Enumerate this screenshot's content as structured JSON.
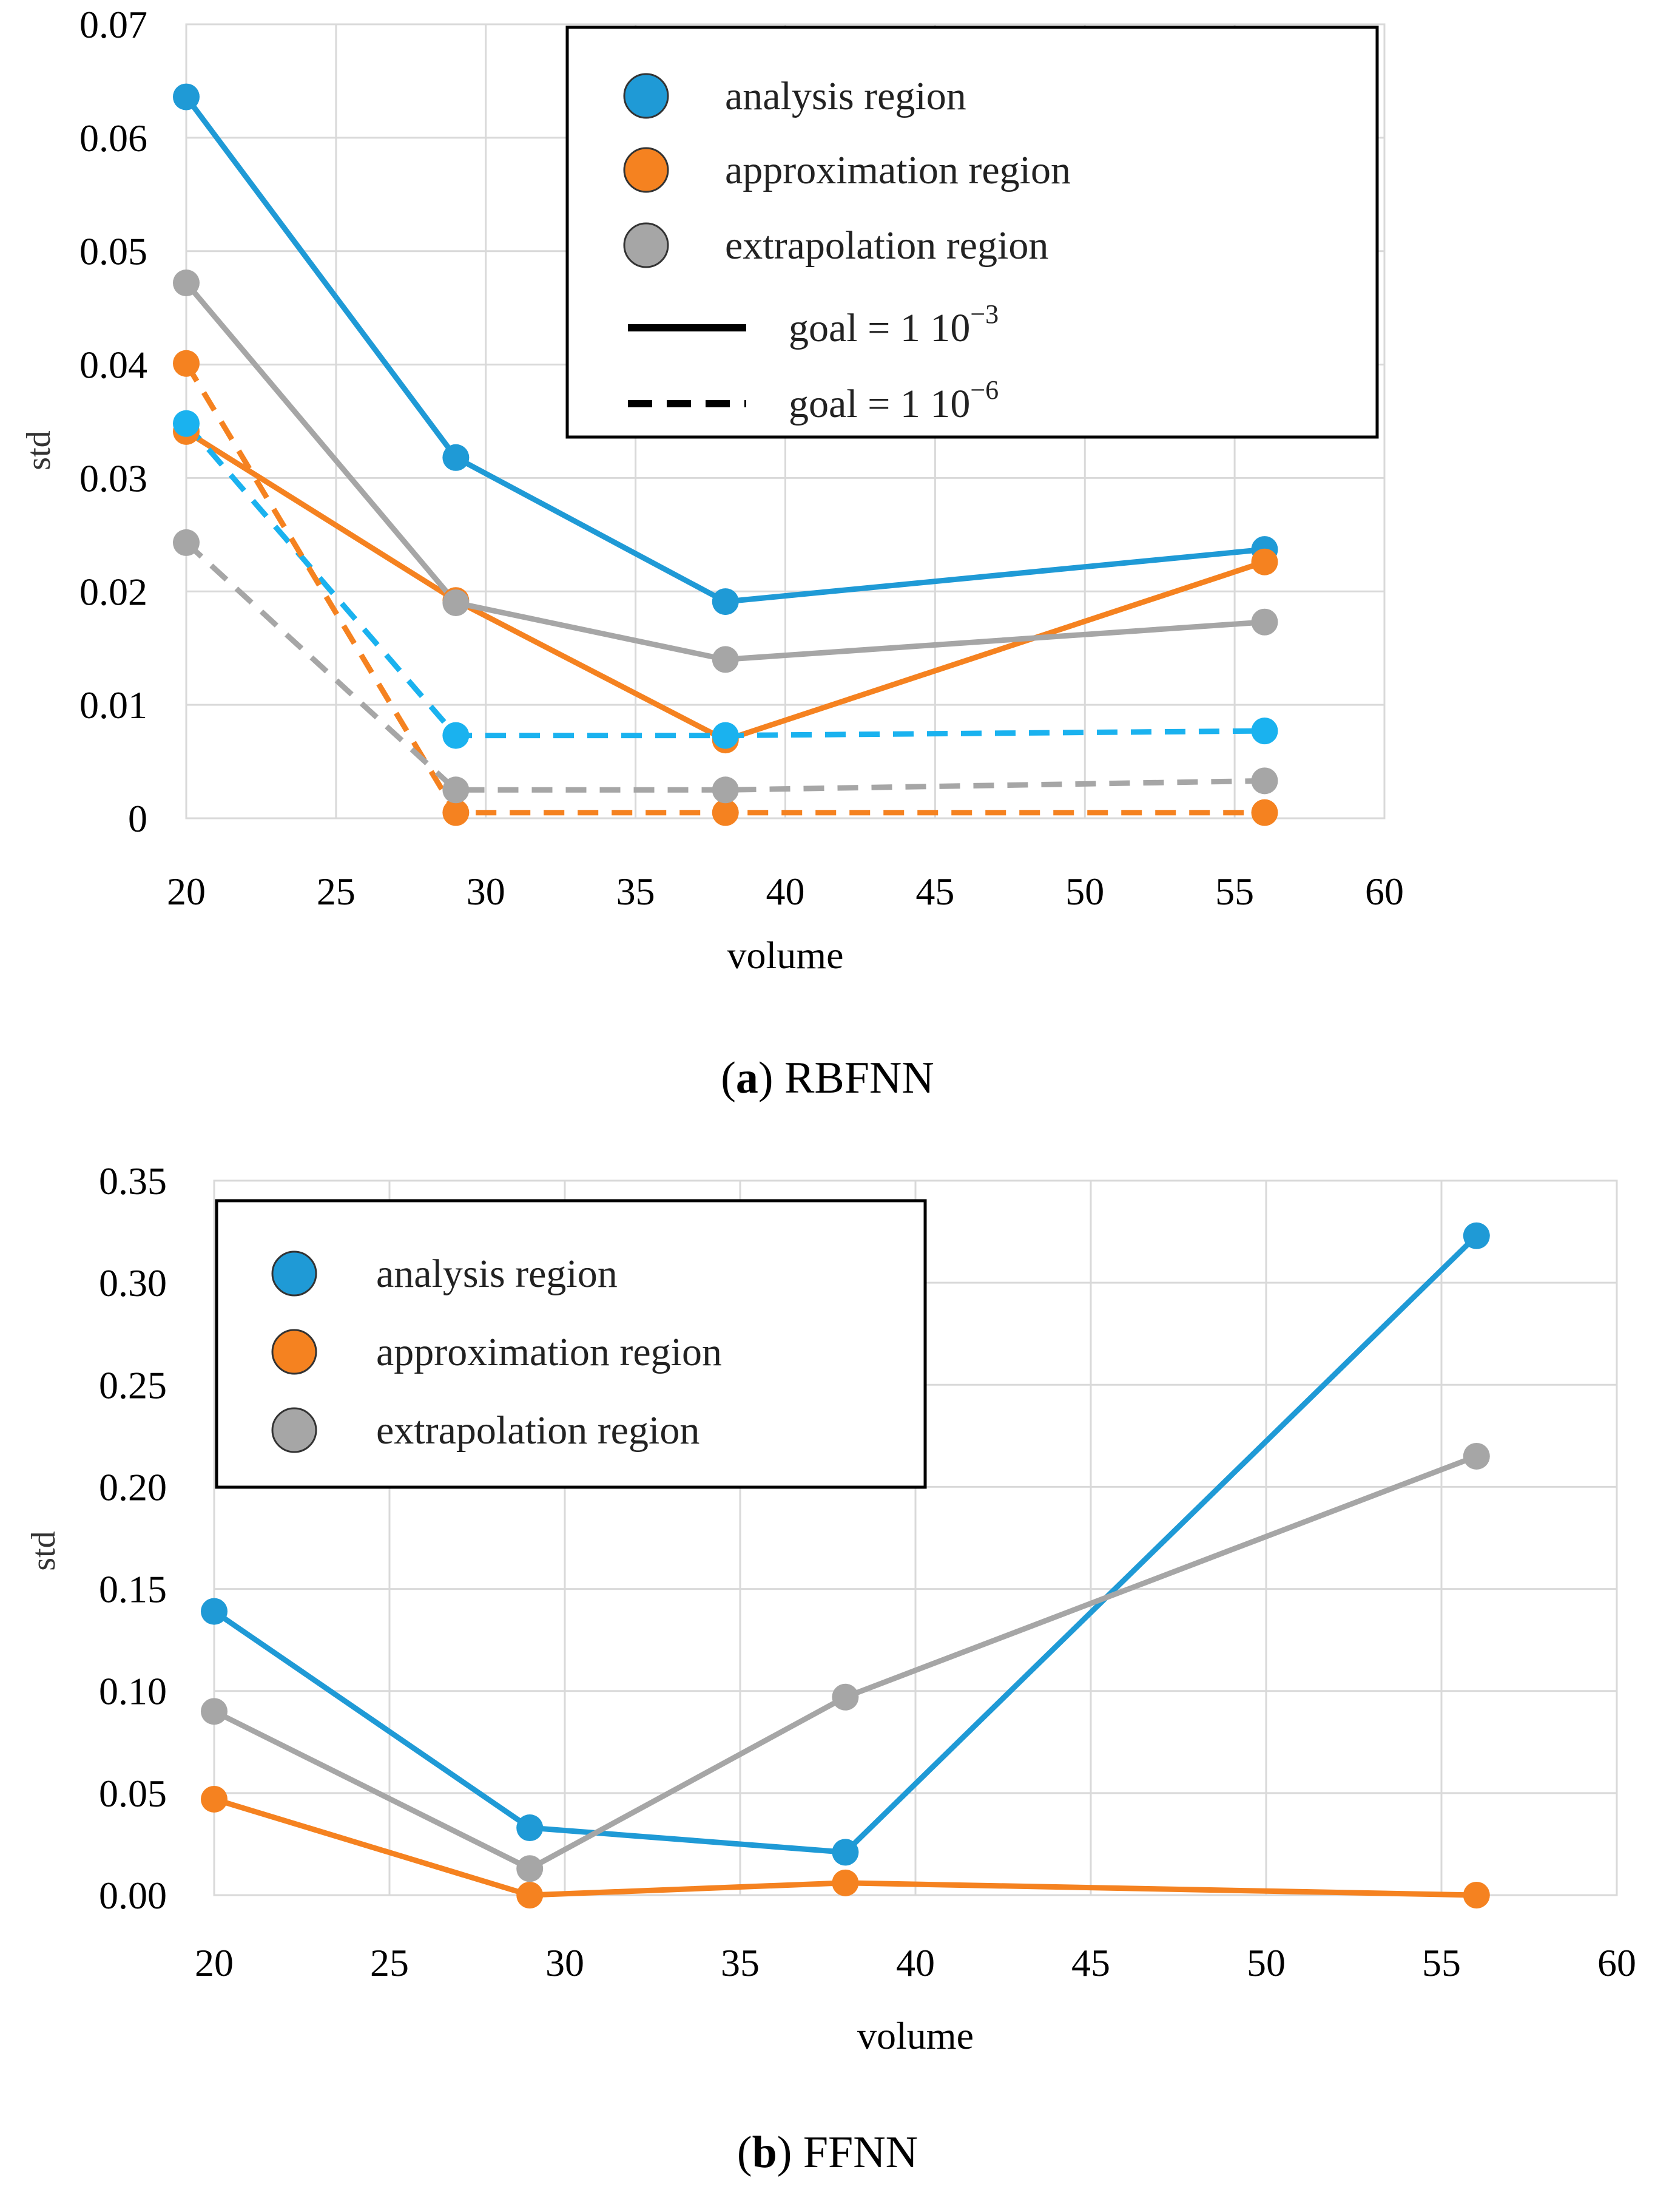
{
  "colors": {
    "analysis": "#1f9ad6",
    "analysis_dashed": "#1ab2ef",
    "approximation": "#f58220",
    "extrapolation": "#a6a6a6",
    "grid": "#d9d9d9",
    "frame": "#000000"
  },
  "chart_data": [
    {
      "type": "line",
      "panel_letter": "a",
      "caption": "RBFNN",
      "xlabel": "volume",
      "ylabel": "std",
      "xlim": [
        20,
        60
      ],
      "ylim": [
        0,
        0.07
      ],
      "x_ticks": [
        "20",
        "25",
        "30",
        "35",
        "40",
        "45",
        "50",
        "55",
        "60"
      ],
      "y_ticks": [
        "0",
        "0.01",
        "0.02",
        "0.03",
        "0.04",
        "0.05",
        "0.06",
        "0.07"
      ],
      "x_values": [
        20,
        29,
        38,
        56
      ],
      "series": [
        {
          "name": "analysis region",
          "key": "analysis",
          "style": "solid",
          "goal": "goal = 1 10-3",
          "values": [
            0.0636,
            0.0318,
            0.0191,
            0.0237
          ]
        },
        {
          "name": "approximation region",
          "key": "approximation",
          "style": "solid",
          "goal": "goal = 1 10-3",
          "values": [
            0.0341,
            0.0192,
            0.0069,
            0.0226
          ]
        },
        {
          "name": "extrapolation region",
          "key": "extrapolation",
          "style": "solid",
          "goal": "goal = 1 10-3",
          "values": [
            0.0472,
            0.019,
            0.014,
            0.0173
          ]
        },
        {
          "name": "analysis region",
          "key": "analysis_dashed",
          "style": "dashed",
          "goal": "goal = 1 10-6",
          "values": [
            0.0348,
            0.0073,
            0.0073,
            0.0077
          ]
        },
        {
          "name": "approximation region",
          "key": "approximation",
          "style": "dashed",
          "goal": "goal = 1 10-6",
          "values": [
            0.0401,
            0.0005,
            0.0005,
            0.0005
          ]
        },
        {
          "name": "extrapolation region",
          "key": "extrapolation",
          "style": "dashed",
          "goal": "goal = 1 10-6",
          "values": [
            0.0243,
            0.0025,
            0.0025,
            0.0033
          ]
        }
      ],
      "legend": {
        "placement": "top-right",
        "markers": [
          {
            "label": "analysis region",
            "key": "analysis"
          },
          {
            "label": "approximation region",
            "key": "approximation"
          },
          {
            "label": "extrapolation region",
            "key": "extrapolation"
          }
        ],
        "lines": [
          {
            "style": "solid",
            "prefix": "goal = 1 10",
            "exponent": "−3"
          },
          {
            "style": "dashed",
            "prefix": "goal = 1 10",
            "exponent": "−6"
          }
        ]
      }
    },
    {
      "type": "line",
      "panel_letter": "b",
      "caption": "FFNN",
      "xlabel": "volume",
      "ylabel": "std",
      "xlim": [
        20,
        60
      ],
      "ylim": [
        0,
        0.35
      ],
      "x_ticks": [
        "20",
        "25",
        "30",
        "35",
        "40",
        "45",
        "50",
        "55",
        "60"
      ],
      "y_ticks": [
        "0.00",
        "0.05",
        "0.10",
        "0.15",
        "0.20",
        "0.25",
        "0.30",
        "0.35"
      ],
      "x_values": [
        20,
        29,
        38,
        56
      ],
      "series": [
        {
          "name": "analysis region",
          "key": "analysis",
          "style": "solid",
          "values": [
            0.139,
            0.033,
            0.021,
            0.323
          ]
        },
        {
          "name": "approximation region",
          "key": "approximation",
          "style": "solid",
          "values": [
            0.047,
            0.0,
            0.006,
            0.0
          ]
        },
        {
          "name": "extrapolation region",
          "key": "extrapolation",
          "style": "solid",
          "values": [
            0.09,
            0.013,
            0.097,
            0.215
          ]
        }
      ],
      "legend": {
        "placement": "top-left",
        "markers": [
          {
            "label": "analysis region",
            "key": "analysis"
          },
          {
            "label": "approximation region",
            "key": "approximation"
          },
          {
            "label": "extrapolation region",
            "key": "extrapolation"
          }
        ],
        "lines": []
      }
    }
  ]
}
